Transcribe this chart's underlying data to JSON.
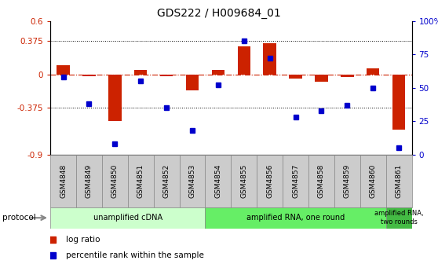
{
  "title": "GDS222 / H009684_01",
  "categories": [
    "GSM4848",
    "GSM4849",
    "GSM4850",
    "GSM4851",
    "GSM4852",
    "GSM4853",
    "GSM4854",
    "GSM4855",
    "GSM4856",
    "GSM4857",
    "GSM4858",
    "GSM4859",
    "GSM4860",
    "GSM4861"
  ],
  "log_ratio": [
    0.1,
    -0.02,
    -0.52,
    0.05,
    -0.02,
    -0.18,
    0.05,
    0.32,
    0.35,
    -0.05,
    -0.08,
    -0.03,
    0.07,
    -0.62
  ],
  "percentile": [
    58,
    38,
    8,
    55,
    35,
    18,
    52,
    85,
    72,
    28,
    33,
    37,
    50,
    5
  ],
  "bar_color": "#cc2200",
  "dot_color": "#0000cc",
  "zero_line_color": "#cc2200",
  "ylim_left": [
    -0.9,
    0.6
  ],
  "ylim_right": [
    0,
    100
  ],
  "yticks_left": [
    -0.9,
    -0.375,
    0.0,
    0.375,
    0.6
  ],
  "ytick_labels_left": [
    "-0.9",
    "-0.375",
    "0",
    "0.375",
    "0.6"
  ],
  "yticks_right": [
    0,
    25,
    50,
    75,
    100
  ],
  "ytick_labels_right": [
    "0",
    "25",
    "50",
    "75",
    "100%"
  ],
  "hlines": [
    0.375,
    -0.375
  ],
  "protocol_groups": [
    {
      "label": "unamplified cDNA",
      "start": 0,
      "end": 5,
      "color": "#ccffcc"
    },
    {
      "label": "amplified RNA, one round",
      "start": 6,
      "end": 12,
      "color": "#66ee66"
    },
    {
      "label": "amplified RNA,\ntwo rounds",
      "start": 13,
      "end": 13,
      "color": "#44bb44"
    }
  ],
  "legend_items": [
    {
      "label": "log ratio",
      "color": "#cc2200"
    },
    {
      "label": "percentile rank within the sample",
      "color": "#0000cc"
    }
  ],
  "protocol_label": "protocol",
  "background_color": "#ffffff",
  "label_box_color": "#cccccc",
  "label_box_edge": "#888888"
}
